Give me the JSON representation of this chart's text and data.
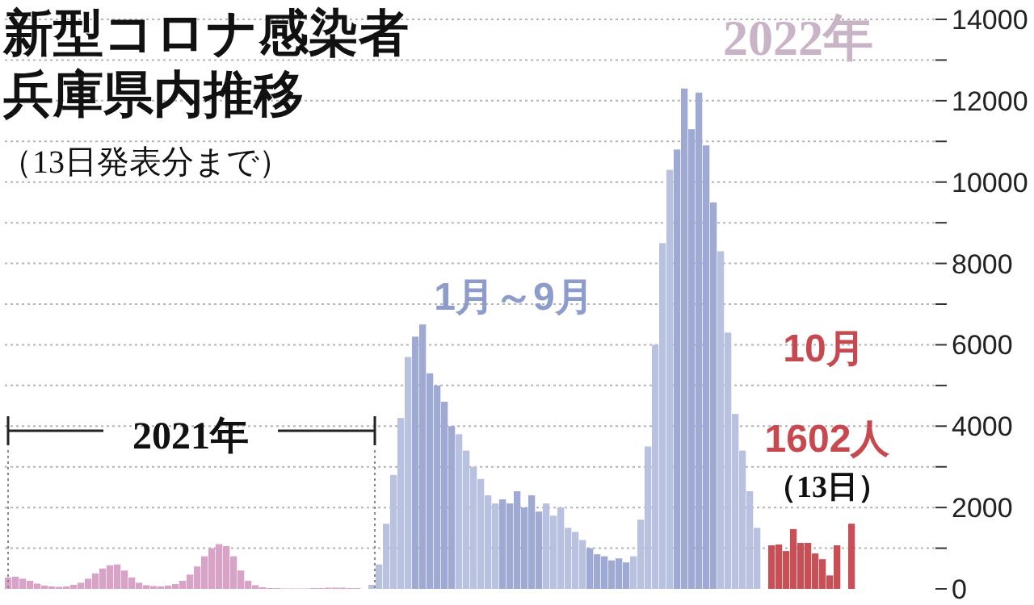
{
  "chart_data": {
    "type": "bar",
    "title": "新型コロナ感染者兵庫県内推移",
    "subtitle": "（13日発表分まで）",
    "categories": [
      null,
      null,
      null,
      null,
      null,
      null,
      null,
      null,
      null,
      null,
      null,
      null,
      null,
      null,
      null,
      null,
      null,
      null,
      null,
      null,
      null,
      null,
      null,
      null,
      null,
      null,
      null,
      null,
      null,
      null,
      null,
      null,
      null,
      null,
      null,
      null,
      null,
      null,
      null,
      null,
      null,
      null,
      null,
      null,
      null,
      null,
      null,
      null,
      null,
      null,
      null,
      null,
      null,
      null,
      null,
      null,
      null,
      null,
      null,
      null,
      null,
      null,
      null,
      null,
      null,
      null,
      null,
      null,
      null,
      null,
      null,
      null,
      null,
      null,
      null,
      null,
      null,
      null,
      null,
      null,
      null,
      null,
      null,
      null,
      null,
      null,
      null,
      null,
      null,
      null,
      null,
      null,
      null,
      null,
      null,
      null,
      null,
      null,
      null,
      null,
      null,
      null,
      null,
      null,
      null,
      null,
      null,
      null,
      null,
      null,
      null,
      null,
      null,
      null,
      null,
      null,
      null,
      null,
      null,
      null,
      null,
      null,
      null,
      null,
      null,
      null,
      null,
      null
    ],
    "values": [
      280,
      300,
      250,
      200,
      130,
      80,
      60,
      50,
      60,
      100,
      150,
      250,
      380,
      500,
      580,
      600,
      450,
      280,
      150,
      90,
      70,
      60,
      80,
      120,
      200,
      350,
      550,
      800,
      1000,
      1100,
      1050,
      800,
      450,
      200,
      90,
      40,
      20,
      20,
      10,
      10,
      10,
      10,
      20,
      20,
      30,
      30,
      30,
      20,
      20,
      null,
      100,
      600,
      1600,
      2800,
      4200,
      5700,
      6200,
      6500,
      5300,
      5000,
      4600,
      4000,
      3800,
      3400,
      3000,
      2700,
      2300,
      2100,
      2200,
      2100,
      2400,
      2000,
      2300,
      1900,
      2100,
      1800,
      2000,
      1500,
      1400,
      1200,
      1000,
      850,
      800,
      700,
      750,
      650,
      800,
      1700,
      3500,
      6000,
      8500,
      10300,
      10800,
      12300,
      11300,
      12200,
      10900,
      9500,
      8300,
      6300,
      4300,
      3400,
      2400,
      1500,
      null,
      1070,
      1090,
      930,
      1470,
      1130,
      1130,
      870,
      730,
      330,
      1070,
      null,
      1602,
      null,
      null,
      null,
      null,
      null,
      null,
      null,
      null,
      null,
      null,
      null
    ],
    "colors": [
      "#d9a3c7",
      "#d9a3c7",
      "#d9a3c7",
      "#d9a3c7",
      "#d9a3c7",
      "#d9a3c7",
      "#d9a3c7",
      "#d9a3c7",
      "#d9a3c7",
      "#d9a3c7",
      "#d9a3c7",
      "#d9a3c7",
      "#d9a3c7",
      "#d9a3c7",
      "#d9a3c7",
      "#d9a3c7",
      "#d9a3c7",
      "#d9a3c7",
      "#d9a3c7",
      "#d9a3c7",
      "#d9a3c7",
      "#d9a3c7",
      "#d9a3c7",
      "#d9a3c7",
      "#d9a3c7",
      "#d9a3c7",
      "#d9a3c7",
      "#d9a3c7",
      "#d9a3c7",
      "#d9a3c7",
      "#d9a3c7",
      "#d9a3c7",
      "#d9a3c7",
      "#d9a3c7",
      "#d9a3c7",
      "#d9a3c7",
      "#d9a3c7",
      "#d9a3c7",
      "#d9a3c7",
      "#d9a3c7",
      "#d9a3c7",
      "#d9a3c7",
      "#d9a3c7",
      "#d9a3c7",
      "#d9a3c7",
      "#d9a3c7",
      "#d9a3c7",
      "#d9a3c7",
      "#d9a3c7",
      null,
      "#b8c2e0",
      "#b8c2e0",
      "#b8c2e0",
      "#b8c2e0",
      "#b8c2e0",
      "#b8c2e0",
      "#9eaad3",
      "#9eaad3",
      "#9eaad3",
      "#9eaad3",
      "#9eaad3",
      "#9eaad3",
      "#b8c2e0",
      "#b8c2e0",
      "#b8c2e0",
      "#b8c2e0",
      "#b8c2e0",
      "#b8c2e0",
      "#9eaad3",
      "#9eaad3",
      "#9eaad3",
      "#9eaad3",
      "#9eaad3",
      "#9eaad3",
      "#b8c2e0",
      "#b8c2e0",
      "#b8c2e0",
      "#b8c2e0",
      "#b8c2e0",
      "#b8c2e0",
      "#9eaad3",
      "#9eaad3",
      "#9eaad3",
      "#9eaad3",
      "#9eaad3",
      "#9eaad3",
      "#b8c2e0",
      "#b8c2e0",
      "#b8c2e0",
      "#b8c2e0",
      "#b8c2e0",
      "#b8c2e0",
      "#9eaad3",
      "#9eaad3",
      "#9eaad3",
      "#9eaad3",
      "#9eaad3",
      "#9eaad3",
      "#b8c2e0",
      "#b8c2e0",
      "#b8c2e0",
      "#b8c2e0",
      "#b8c2e0",
      "#b8c2e0",
      null,
      "#c94f56",
      "#c94f56",
      "#c94f56",
      "#c94f56",
      "#c94f56",
      "#c94f56",
      "#c94f56",
      "#c94f56",
      "#c94f56",
      "#c94f56",
      null,
      "#c94f56",
      null,
      null,
      null,
      null,
      null,
      null,
      null,
      null,
      null,
      null,
      null
    ],
    "ylim": [
      0,
      14000
    ],
    "yticks": [
      0,
      {
        "value": 1000,
        "label": null
      },
      2000,
      {
        "value": 3000,
        "label": null
      },
      4000,
      {
        "value": 5000,
        "label": null
      },
      6000,
      {
        "value": 7000,
        "label": null
      },
      8000,
      {
        "value": 9000,
        "label": null
      },
      10000,
      {
        "value": 11000,
        "label": null
      },
      12000,
      {
        "value": 13000,
        "label": null
      },
      14000
    ],
    "grid": "y",
    "tick_labels": "y",
    "annotations": [
      "2022年",
      "1月～9月",
      "10月",
      "2021年",
      "1602人",
      "（13日）"
    ]
  }
}
